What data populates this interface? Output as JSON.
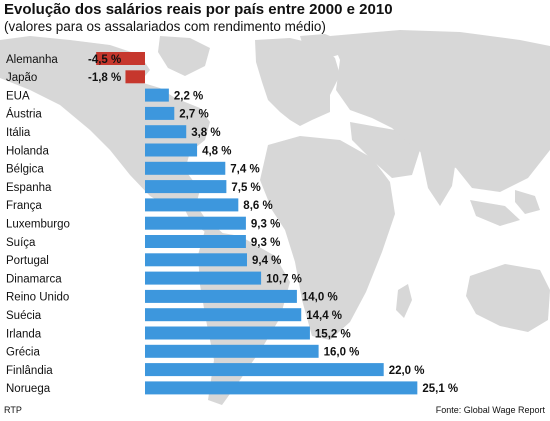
{
  "header": {
    "title": "Evolução dos salários reais por país entre 2000 e 2010",
    "subtitle": "(valores para os assalariados com rendimento médio)"
  },
  "footer": {
    "credit": "RTP",
    "source": "Fonte: Global Wage Report"
  },
  "colors": {
    "positive_bar": "#3d97dd",
    "negative_bar": "#c6372d",
    "map_land": "#d7d7d7",
    "background": "#ffffff"
  },
  "chart_data": {
    "type": "bar",
    "orientation": "horizontal",
    "title": "Evolução dos salários reais por país entre 2000 e 2010",
    "subtitle": "(valores para os assalariados com rendimento médio)",
    "categories": [
      "Alemanha",
      "Japão",
      "EUA",
      "Áustria",
      "Itália",
      "Holanda",
      "Bélgica",
      "Espanha",
      "França",
      "Luxemburgo",
      "Suíça",
      "Portugal",
      "Dinamarca",
      "Reino Unido",
      "Suécia",
      "Irlanda",
      "Grécia",
      "Finlândia",
      "Noruega"
    ],
    "values": [
      -4.5,
      -1.8,
      2.2,
      2.7,
      3.8,
      4.8,
      7.4,
      7.5,
      8.6,
      9.3,
      9.3,
      9.4,
      10.7,
      14.0,
      14.4,
      15.2,
      16.0,
      22.0,
      25.1
    ],
    "value_labels": [
      "-4,5 %",
      "-1,8 %",
      "2,2 %",
      "2,7 %",
      "3,8 %",
      "4,8 %",
      "7,4 %",
      "7,5 %",
      "8,6 %",
      "9,3 %",
      "9,3 %",
      "9,4 %",
      "10,7 %",
      "14,0 %",
      "14,4 %",
      "15,2 %",
      "16,0 %",
      "22,0 %",
      "25,1 %"
    ],
    "xlim": [
      -4.5,
      25.1
    ],
    "grid": false,
    "legend": "none"
  }
}
